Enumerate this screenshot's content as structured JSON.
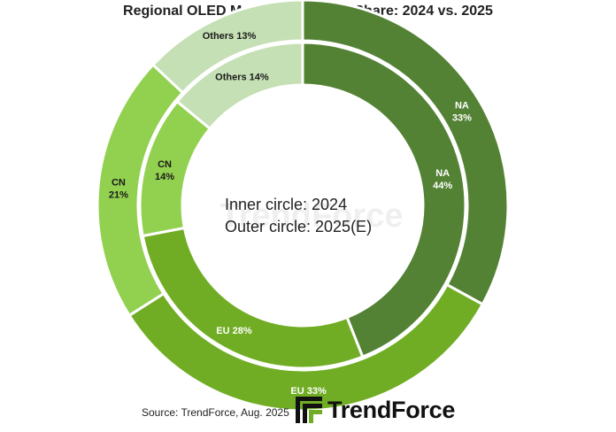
{
  "title": "Regional OLED Monitor Shipment Share: 2024 vs. 2025",
  "source": "Source: TrendForce, Aug. 2025",
  "logo_text": "TrendForce",
  "watermark_text": "TrendForce",
  "chart_data": {
    "type": "pie",
    "center_text": [
      "Inner circle: 2024",
      "Outer circle: 2025(E)"
    ],
    "series": [
      {
        "name": "2024",
        "ring": "inner",
        "categories": [
          "NA",
          "EU",
          "CN",
          "Others"
        ],
        "values": [
          44,
          28,
          14,
          14
        ],
        "labels": [
          [
            "NA",
            "44%"
          ],
          [
            "EU 28%"
          ],
          [
            "CN",
            "14%"
          ],
          [
            "Others 14%"
          ]
        ]
      },
      {
        "name": "2025(E)",
        "ring": "outer",
        "categories": [
          "NA",
          "EU",
          "CN",
          "Others"
        ],
        "values": [
          33,
          33,
          21,
          13
        ],
        "labels": [
          [
            "NA",
            "33%"
          ],
          [
            "EU 33%"
          ],
          [
            "CN",
            "21%"
          ],
          [
            "Others 13%"
          ]
        ]
      }
    ],
    "colors": {
      "NA": "#548235",
      "EU": "#70AD24",
      "CN": "#92D050",
      "Others": "#C5E0B4"
    }
  }
}
